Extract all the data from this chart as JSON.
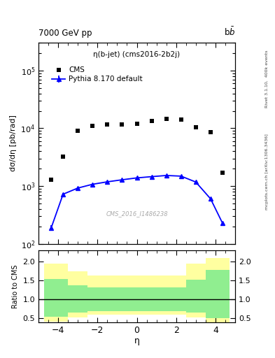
{
  "title_left": "7000 GeV pp",
  "title_right": "b$\\bar{\\text{b}}$",
  "plot_title": "η(b-jet) (cms2016-2b2j)",
  "right_label_top": "Rivet 3.1.10,  400k events",
  "right_label_bot": "mcplots.cern.ch [arXiv:1306.3436]",
  "watermark": "CMS_2016_I1486238",
  "ylabel_main": "dσ/dη [pb/rad]",
  "ylabel_ratio": "Ratio to CMS",
  "xlabel": "η",
  "ylim_main_log": [
    100,
    300000
  ],
  "ylim_ratio": [
    0.4,
    2.3
  ],
  "yticks_ratio": [
    0.5,
    1.0,
    1.5,
    2.0
  ],
  "cms_x": [
    -4.35,
    -3.75,
    -3.0,
    -2.25,
    -1.5,
    -0.75,
    0.0,
    0.75,
    1.5,
    2.25,
    3.0,
    3.75,
    4.35
  ],
  "cms_y": [
    1300,
    3200,
    9000,
    11000,
    11500,
    11500,
    12000,
    13500,
    14500,
    14000,
    10500,
    8500,
    1700
  ],
  "pythia_x": [
    -4.35,
    -3.75,
    -3.0,
    -2.25,
    -1.5,
    -0.75,
    0.0,
    0.75,
    1.5,
    2.25,
    3.0,
    3.75,
    4.35
  ],
  "pythia_y": [
    190,
    720,
    920,
    1070,
    1180,
    1280,
    1380,
    1450,
    1520,
    1480,
    1170,
    600,
    230
  ],
  "pythia_yerr": [
    18,
    28,
    25,
    25,
    25,
    25,
    25,
    25,
    25,
    25,
    28,
    22,
    12
  ],
  "xlim": [
    -5.0,
    5.0
  ],
  "xticks": [
    -4,
    -2,
    0,
    2,
    4
  ],
  "ratio_bands": {
    "yellow_upper": [
      1.95,
      1.75,
      1.63,
      1.63,
      1.63,
      1.63,
      1.63,
      1.95,
      2.1
    ],
    "yellow_lower": [
      0.42,
      0.52,
      0.6,
      0.6,
      0.6,
      0.6,
      0.6,
      0.52,
      0.4
    ],
    "green_upper": [
      1.55,
      1.38,
      1.32,
      1.32,
      1.32,
      1.32,
      1.32,
      1.52,
      1.78
    ],
    "green_lower": [
      0.55,
      0.65,
      0.7,
      0.7,
      0.7,
      0.7,
      0.7,
      0.65,
      0.5
    ],
    "x_edges": [
      -4.7,
      -3.5,
      -2.5,
      -1.5,
      -0.5,
      0.5,
      1.5,
      2.5,
      3.5,
      4.7
    ]
  },
  "cms_color": "black",
  "pythia_color": "blue",
  "green_color": "#90EE90",
  "yellow_color": "#FFFFA0",
  "bg_color": "white"
}
